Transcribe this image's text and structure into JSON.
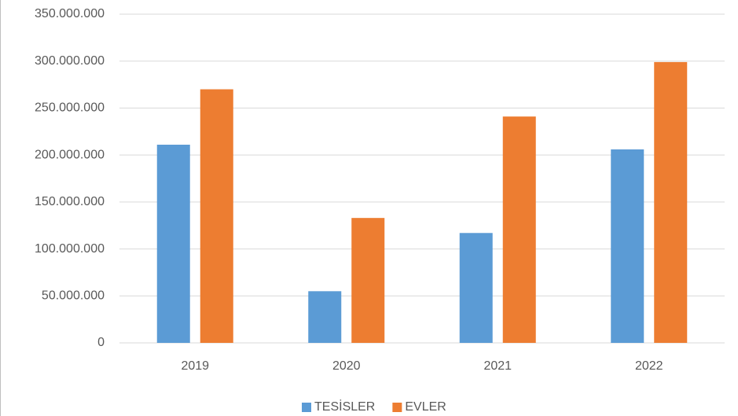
{
  "chart_data": {
    "type": "bar",
    "categories": [
      "2019",
      "2020",
      "2021",
      "2022"
    ],
    "series": [
      {
        "name": "TESİSLER",
        "color": "#5b9bd5",
        "values": [
          211000000,
          55000000,
          117000000,
          206000000
        ]
      },
      {
        "name": "EVLER",
        "color": "#ed7d31",
        "values": [
          270000000,
          133000000,
          241000000,
          299000000
        ]
      }
    ],
    "ylim": [
      0,
      350000000
    ],
    "yticks": [
      0,
      {
        "value": 50000000,
        "label": "50.000.000"
      },
      {
        "value": 100000000,
        "label": "100.000.000"
      },
      {
        "value": 150000000,
        "label": "150.000.000"
      },
      {
        "value": 200000000,
        "label": "200.000.000"
      },
      {
        "value": 250000000,
        "label": "250.000.000"
      },
      {
        "value": 300000000,
        "label": "300.000.000"
      },
      {
        "value": 350000000,
        "label": "350.000.000"
      }
    ],
    "grid": true,
    "legend": "bottom"
  }
}
